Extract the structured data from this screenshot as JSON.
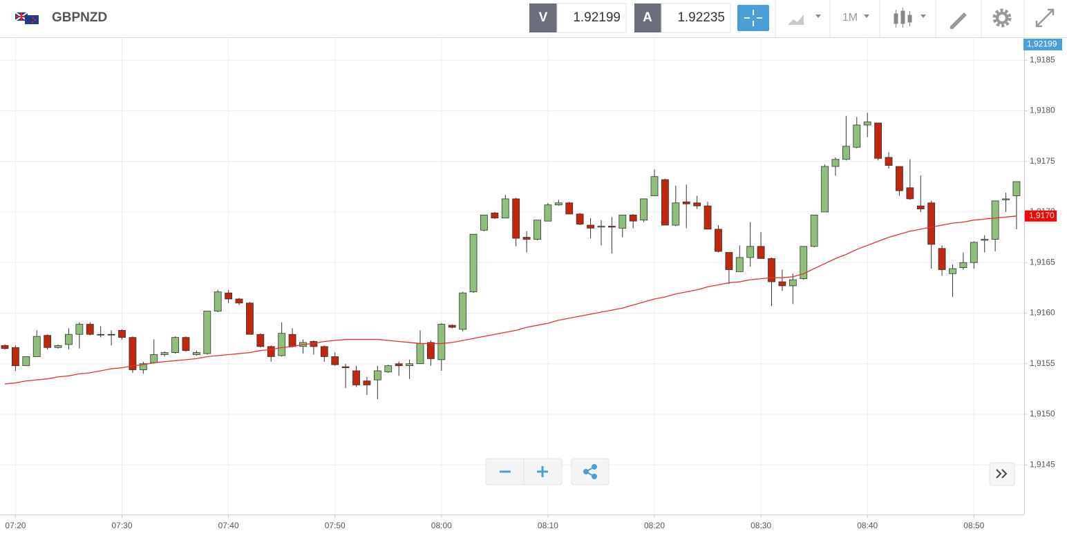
{
  "header": {
    "symbol": "GBPNZD",
    "bid_label": "V",
    "bid": 1.92199,
    "ask_label": "A",
    "ask": 1.92235,
    "timeframe": "1M"
  },
  "chart_data": {
    "type": "candlestick",
    "categories": [
      null,
      "07:20",
      null,
      null,
      null,
      null,
      null,
      null,
      null,
      null,
      null,
      "07:30",
      null,
      null,
      null,
      null,
      null,
      null,
      null,
      null,
      null,
      "07:40",
      null,
      null,
      null,
      null,
      null,
      null,
      null,
      null,
      null,
      "07:50",
      null,
      null,
      null,
      null,
      null,
      null,
      null,
      null,
      null,
      "08:00",
      null,
      null,
      null,
      null,
      null,
      null,
      null,
      null,
      null,
      "08:10",
      null,
      null,
      null,
      null,
      null,
      null,
      null,
      null,
      null,
      "08:20",
      null,
      null,
      null,
      null,
      null,
      null,
      null,
      null,
      null,
      "08:30",
      null,
      null,
      null,
      null,
      null,
      null,
      null,
      null,
      null,
      "08:40",
      null,
      null,
      null,
      null,
      null,
      null,
      null,
      null,
      null,
      "08:50",
      null,
      null,
      null,
      null
    ],
    "open": [
      1.91568,
      1.91566,
      1.91548,
      1.91557,
      1.91578,
      1.91566,
      1.91569,
      1.91579,
      1.91589,
      1.91579,
      1.91579,
      1.91583,
      1.91576,
      1.91544,
      1.91551,
      1.91559,
      1.91561,
      1.91576,
      1.91559,
      1.9156,
      1.91602,
      1.9162,
      1.91614,
      1.9161,
      1.91579,
      1.91567,
      1.91558,
      1.91579,
      1.91567,
      1.91572,
      1.91567,
      1.91557,
      1.91547,
      1.91543,
      1.91533,
      1.91534,
      1.91542,
      1.9155,
      1.91548,
      1.9155,
      1.91571,
      1.91554,
      1.91588,
      1.91584,
      1.91621,
      1.91682,
      1.91699,
      1.91694,
      1.91713,
      1.91675,
      1.91673,
      1.91691,
      1.91707,
      1.91709,
      1.91698,
      1.91687,
      1.91685,
      1.91686,
      1.91684,
      1.91697,
      1.91692,
      1.91716,
      1.91732,
      1.91687,
      1.9171,
      1.91709,
      1.91706,
      1.91683,
      1.9166,
      1.91641,
      1.91655,
      1.91666,
      1.91654,
      1.91631,
      1.91627,
      1.91634,
      1.91666,
      1.917,
      1.91745,
      1.91752,
      1.91764,
      1.91786,
      1.91788,
      1.91754,
      1.91745,
      1.91724,
      1.91706,
      1.91709,
      1.91664,
      1.91639,
      1.91645,
      1.9165,
      1.91672,
      1.91673,
      1.91712,
      1.91716
    ],
    "high": [
      1.91569,
      1.91568,
      1.91557,
      1.91583,
      1.91579,
      1.91569,
      1.91585,
      1.91591,
      1.91591,
      1.91587,
      1.91583,
      1.91584,
      1.91577,
      1.91552,
      1.91574,
      1.91562,
      1.91577,
      1.91577,
      1.91563,
      1.91602,
      1.91623,
      1.91623,
      1.91615,
      1.91611,
      1.9158,
      1.91568,
      1.91591,
      1.91585,
      1.91574,
      1.91573,
      1.91568,
      1.91561,
      1.9155,
      1.91548,
      1.91537,
      1.91548,
      1.91549,
      1.91552,
      1.91554,
      1.91583,
      1.91573,
      1.9159,
      1.91589,
      1.91621,
      1.91678,
      1.91697,
      1.917,
      1.91717,
      1.91714,
      1.91681,
      1.91692,
      1.91709,
      1.91712,
      1.9171,
      1.91699,
      1.91694,
      1.91692,
      1.91695,
      1.91697,
      1.91698,
      1.91713,
      1.91742,
      1.91733,
      1.91726,
      1.91727,
      1.91716,
      1.9171,
      1.91687,
      1.9166,
      1.91667,
      1.9169,
      1.9168,
      1.91655,
      1.91643,
      1.91639,
      1.91666,
      1.91697,
      1.91747,
      1.91754,
      1.91795,
      1.91794,
      1.91798,
      1.91788,
      1.91759,
      1.91745,
      1.91752,
      1.91736,
      1.91711,
      1.91667,
      1.91648,
      1.9166,
      1.91671,
      1.91677,
      1.91711,
      1.91719,
      1.9173
    ],
    "low": [
      1.91564,
      1.91543,
      1.91548,
      1.91557,
      1.91564,
      1.91565,
      1.91564,
      1.91565,
      1.91578,
      1.91576,
      1.91568,
      1.91574,
      1.91541,
      1.9154,
      1.9155,
      1.91557,
      1.9156,
      1.91562,
      1.91558,
      1.91559,
      1.91601,
      1.9161,
      1.91608,
      1.91579,
      1.91566,
      1.91552,
      1.91557,
      1.91566,
      1.9156,
      1.91559,
      1.91552,
      1.91548,
      1.91526,
      1.91527,
      1.91519,
      1.91515,
      1.91541,
      1.91538,
      1.91535,
      1.9155,
      1.91548,
      1.91543,
      1.91585,
      1.91582,
      1.9162,
      1.91681,
      1.91693,
      1.91694,
      1.91666,
      1.9166,
      1.91672,
      1.91691,
      1.91706,
      1.91698,
      1.91687,
      1.91674,
      1.91667,
      1.91659,
      1.91675,
      1.91684,
      1.9169,
      1.91716,
      1.91687,
      1.91686,
      1.91684,
      1.91703,
      1.91683,
      1.9166,
      1.91629,
      1.91641,
      1.91646,
      1.91654,
      1.91607,
      1.91622,
      1.91609,
      1.91633,
      1.91665,
      1.917,
      1.91736,
      1.91751,
      1.91763,
      1.91774,
      1.91751,
      1.91743,
      1.91716,
      1.91712,
      1.917,
      1.91644,
      1.91637,
      1.91616,
      1.91643,
      1.91644,
      1.9166,
      1.91661,
      1.917,
      1.91683
    ],
    "close": [
      1.91565,
      1.91548,
      1.91557,
      1.91577,
      1.91566,
      1.91568,
      1.91579,
      1.91589,
      1.91579,
      1.91579,
      1.91579,
      1.91576,
      1.91544,
      1.9155,
      1.91559,
      1.91561,
      1.91576,
      1.91563,
      1.91561,
      1.91602,
      1.91621,
      1.91614,
      1.9161,
      1.91579,
      1.91567,
      1.91557,
      1.9158,
      1.91567,
      1.91571,
      1.91567,
      1.91557,
      1.91549,
      1.91546,
      1.91529,
      1.91529,
      1.91543,
      1.91548,
      1.91548,
      1.9155,
      1.9157,
      1.91555,
      1.91589,
      1.91586,
      1.9162,
      1.91678,
      1.91697,
      1.91694,
      1.91713,
      1.91674,
      1.91673,
      1.91692,
      1.91707,
      1.91709,
      1.91698,
      1.91688,
      1.91684,
      1.91686,
      1.91685,
      1.91697,
      1.91691,
      1.91713,
      1.91735,
      1.91687,
      1.91709,
      1.91708,
      1.91706,
      1.91683,
      1.91661,
      1.91643,
      1.91655,
      1.91666,
      1.91654,
      1.91631,
      1.91627,
      1.91633,
      1.91666,
      1.91697,
      1.91745,
      1.91752,
      1.91765,
      1.91786,
      1.91789,
      1.91753,
      1.91746,
      1.91721,
      1.91713,
      1.91703,
      1.91668,
      1.91643,
      1.91644,
      1.9165,
      1.9167,
      1.91673,
      1.91711,
      1.91713,
      1.9173
    ],
    "up_color": "#8ec07c",
    "down_color": "#c0270f",
    "doji_color": "#333333",
    "moving_average": {
      "color": "#e8312f",
      "value_label": "1,9170",
      "label_color": "#ff0000",
      "values": [
        1.9153,
        1.91531,
        1.91533,
        1.91534,
        1.91535,
        1.91537,
        1.91538,
        1.9154,
        1.91541,
        1.91543,
        1.91545,
        1.91546,
        1.91548,
        1.91549,
        1.91551,
        1.91552,
        1.91553,
        1.91554,
        1.91555,
        1.91557,
        1.91558,
        1.91559,
        1.9156,
        1.91561,
        1.91563,
        1.91564,
        1.91566,
        1.91567,
        1.91569,
        1.9157,
        1.91572,
        1.91573,
        1.91574,
        1.91574,
        1.91574,
        1.91574,
        1.91573,
        1.91572,
        1.91571,
        1.9157,
        1.9157,
        1.9157,
        1.91571,
        1.91573,
        1.91575,
        1.91577,
        1.91579,
        1.91581,
        1.91583,
        1.91586,
        1.91588,
        1.9159,
        1.91593,
        1.91595,
        1.91597,
        1.91599,
        1.91601,
        1.91603,
        1.91605,
        1.91608,
        1.91611,
        1.91614,
        1.91616,
        1.91619,
        1.91621,
        1.91623,
        1.91626,
        1.91628,
        1.9163,
        1.91631,
        1.91633,
        1.91634,
        1.91635,
        1.91635,
        1.91636,
        1.91639,
        1.91644,
        1.91649,
        1.91654,
        1.91658,
        1.91663,
        1.91667,
        1.91671,
        1.91675,
        1.91678,
        1.91681,
        1.91683,
        1.91685,
        1.91687,
        1.91689,
        1.9169,
        1.91692,
        1.91693,
        1.91694,
        1.91695,
        1.91696
      ]
    },
    "price_tag": "1,92199",
    "price_tag_color": "#4a9fd8",
    "ylim": [
      1.91401,
      1.91872
    ],
    "yticks": [
      {
        "value": 1.9145,
        "label": "1,9145"
      },
      {
        "value": 1.915,
        "label": "1,9150"
      },
      {
        "value": 1.9155,
        "label": "1,9155"
      },
      {
        "value": 1.916,
        "label": "1,9160"
      },
      {
        "value": 1.9165,
        "label": "1,9165"
      },
      {
        "value": 1.917,
        "label": "1,9170"
      },
      {
        "value": 1.9175,
        "label": "1,9175"
      },
      {
        "value": 1.918,
        "label": "1,9180"
      },
      {
        "value": 1.9185,
        "label": "1,9185"
      }
    ],
    "grid": true
  }
}
